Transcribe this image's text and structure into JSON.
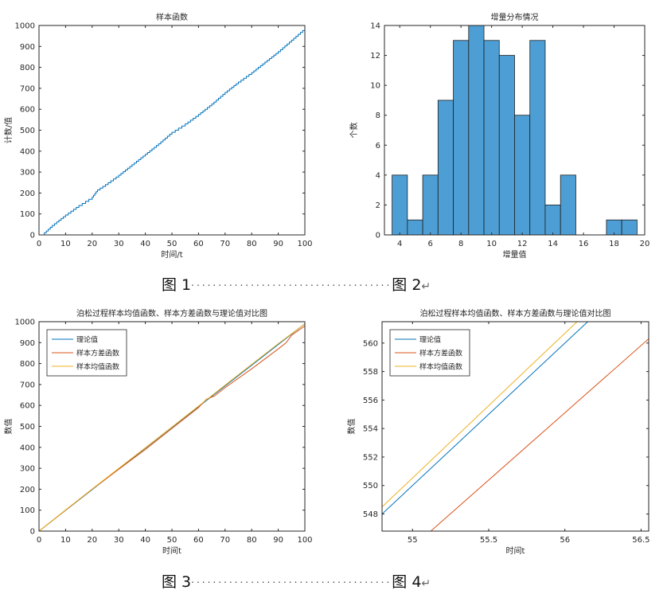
{
  "colors": {
    "blue": "#0072BD",
    "orange": "#D95319",
    "yellow": "#EDB120",
    "hist_fill": "#4D9ED4",
    "hist_edge": "#1f1f1f"
  },
  "captions": [
    {
      "left": "图 1",
      "right": "图 2",
      "ret": "↵"
    },
    {
      "left": "图 3",
      "right": "图 4",
      "ret": "↵"
    }
  ],
  "chart_data": [
    {
      "id": "fig1",
      "type": "line",
      "title": "样本函数",
      "xlabel": "时间/t",
      "ylabel": "计数/值",
      "xlim": [
        0,
        100
      ],
      "ylim": [
        0,
        1000
      ],
      "xticks": [
        0,
        10,
        20,
        30,
        40,
        50,
        60,
        70,
        80,
        90,
        100
      ],
      "yticks": [
        0,
        100,
        200,
        300,
        400,
        500,
        600,
        700,
        800,
        900,
        1000
      ],
      "series": [
        {
          "color": "blue",
          "style": "step",
          "x": [
            0,
            2,
            5,
            10,
            15,
            20,
            22,
            25,
            30,
            35,
            40,
            45,
            50,
            55,
            60,
            65,
            70,
            75,
            80,
            85,
            90,
            95,
            100
          ],
          "y": [
            0,
            10,
            45,
            95,
            140,
            180,
            215,
            240,
            285,
            335,
            385,
            435,
            490,
            530,
            575,
            625,
            680,
            730,
            775,
            825,
            875,
            930,
            985
          ]
        }
      ]
    },
    {
      "id": "fig2",
      "type": "bar",
      "title": "增量分布情况",
      "xlabel": "增量值",
      "ylabel": "个数",
      "xlim": [
        3,
        20
      ],
      "ylim": [
        0,
        14
      ],
      "xticks": [
        4,
        6,
        8,
        10,
        12,
        14,
        16,
        18,
        20
      ],
      "yticks": [
        0,
        2,
        4,
        6,
        8,
        10,
        12,
        14
      ],
      "bin_edges": [
        3.5,
        4.5,
        5.5,
        6.5,
        7.5,
        8.5,
        9.5,
        10.5,
        11.5,
        12.5,
        13.5,
        14.5,
        15.5,
        16.5,
        17.5,
        18.5,
        19.5
      ],
      "values": [
        4,
        1,
        4,
        9,
        13,
        14,
        13,
        12,
        8,
        13,
        2,
        4,
        0,
        0,
        1,
        1
      ]
    },
    {
      "id": "fig3",
      "type": "line",
      "title": "泊松过程样本均值函数、样本方差函数与理论值对比图",
      "xlabel": "时间t",
      "ylabel": "数值",
      "xlim": [
        0,
        100
      ],
      "ylim": [
        0,
        1000
      ],
      "xticks": [
        0,
        10,
        20,
        30,
        40,
        50,
        60,
        70,
        80,
        90,
        100
      ],
      "yticks": [
        0,
        100,
        200,
        300,
        400,
        500,
        600,
        700,
        800,
        900,
        1000
      ],
      "legend": [
        "理论值",
        "样本方差函数",
        "样本均值函数"
      ],
      "legend_position": "top-left",
      "series": [
        {
          "name": "理论值",
          "color": "blue",
          "x": [
            0,
            100
          ],
          "y": [
            0,
            990
          ]
        },
        {
          "name": "样本方差函数",
          "color": "orange",
          "x": [
            0,
            10,
            20,
            30,
            40,
            50,
            60,
            63,
            66,
            70,
            80,
            90,
            93,
            95,
            100
          ],
          "y": [
            0,
            100,
            200,
            295,
            390,
            490,
            590,
            630,
            645,
            685,
            775,
            870,
            900,
            935,
            980
          ]
        },
        {
          "name": "样本均值函数",
          "color": "yellow",
          "x": [
            0,
            10,
            20,
            30,
            40,
            50,
            60,
            70,
            80,
            90,
            100
          ],
          "y": [
            0,
            101,
            201,
            300,
            398,
            497,
            597,
            697,
            796,
            895,
            990
          ]
        }
      ]
    },
    {
      "id": "fig4",
      "type": "line",
      "title": "泊松过程样本均值函数、样本方差函数与理论值对比图",
      "xlabel": "时间t",
      "ylabel": "数值",
      "xlim": [
        54.8,
        56.55
      ],
      "ylim": [
        546.8,
        561.5
      ],
      "xticks": [
        55,
        55.5,
        56,
        56.5
      ],
      "yticks": [
        548,
        550,
        552,
        554,
        556,
        558,
        560
      ],
      "legend": [
        "理论值",
        "样本方差函数",
        "样本均值函数"
      ],
      "legend_position": "top-left",
      "series": [
        {
          "name": "理论值",
          "color": "blue",
          "x": [
            54.8,
            56.15
          ],
          "y": [
            548.0,
            561.5
          ]
        },
        {
          "name": "样本方差函数",
          "color": "orange",
          "x": [
            55.12,
            56.55
          ],
          "y": [
            546.8,
            560.3
          ]
        },
        {
          "name": "样本均值函数",
          "color": "yellow",
          "x": [
            54.8,
            56.08
          ],
          "y": [
            548.5,
            561.5
          ]
        }
      ]
    }
  ]
}
